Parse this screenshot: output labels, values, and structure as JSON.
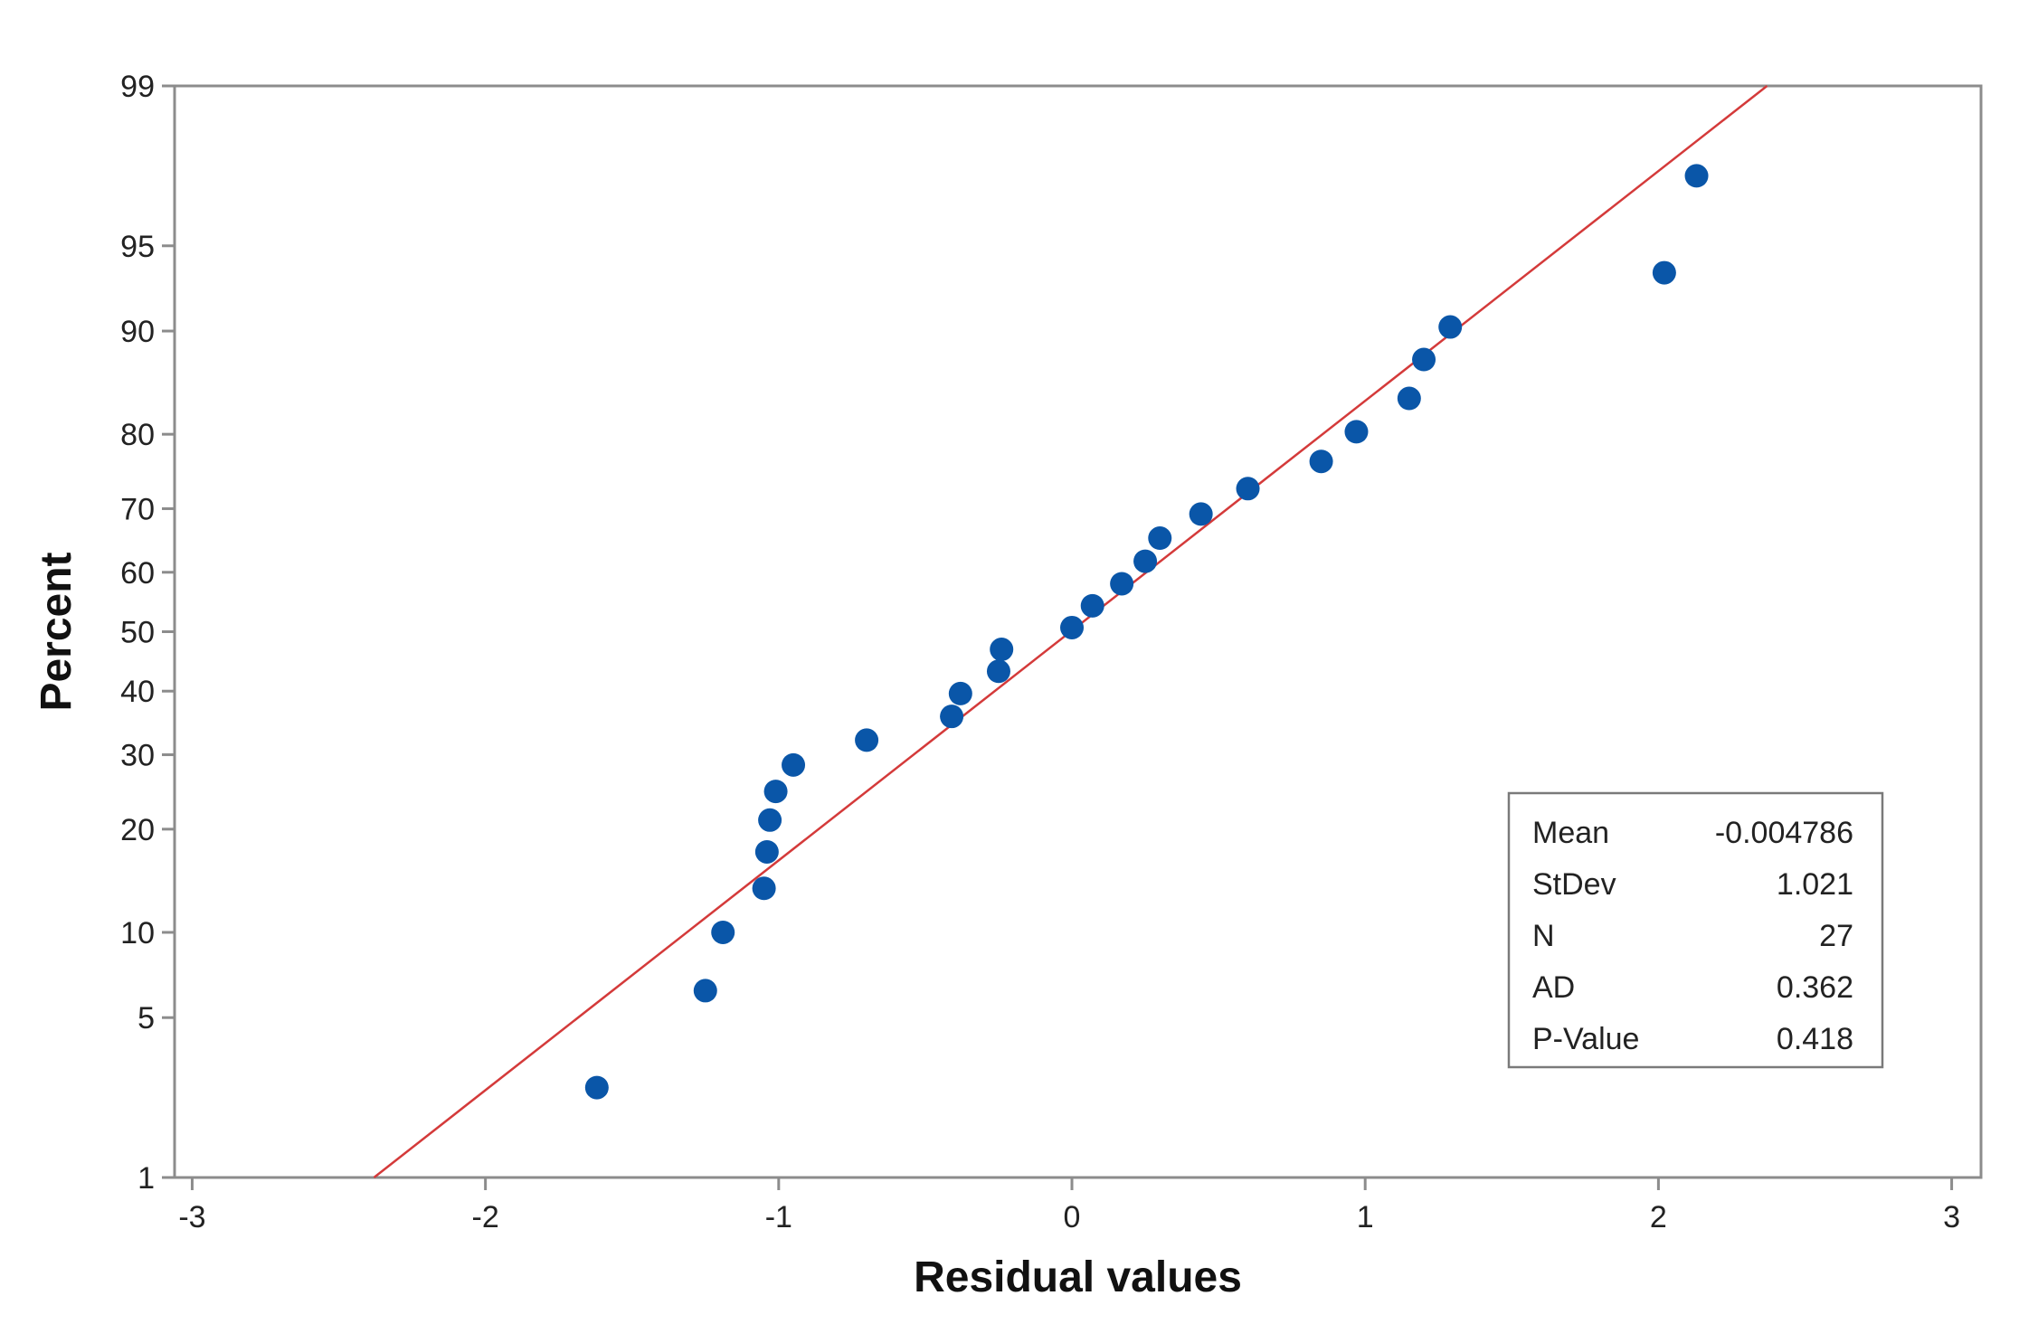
{
  "chart_data": {
    "type": "scatter",
    "subtype": "normal-probability-plot",
    "title": "",
    "xlabel": "Residual values",
    "ylabel": "Percent",
    "xlim": [
      -3,
      3
    ],
    "ylim_percent": [
      1,
      99
    ],
    "x_ticks": [
      {
        "value": -3,
        "label": "-3"
      },
      {
        "value": -2,
        "label": "-2"
      },
      {
        "value": -1,
        "label": "-1"
      },
      {
        "value": 0,
        "label": "0"
      },
      {
        "value": 1,
        "label": "1"
      },
      {
        "value": 2,
        "label": "2"
      },
      {
        "value": 3,
        "label": "3"
      }
    ],
    "y_ticks": [
      {
        "value": 1,
        "label": "1"
      },
      {
        "value": 5,
        "label": "5"
      },
      {
        "value": 10,
        "label": "10"
      },
      {
        "value": 20,
        "label": "20"
      },
      {
        "value": 30,
        "label": "30"
      },
      {
        "value": 40,
        "label": "40"
      },
      {
        "value": 50,
        "label": "50"
      },
      {
        "value": 60,
        "label": "60"
      },
      {
        "value": 70,
        "label": "70"
      },
      {
        "value": 80,
        "label": "80"
      },
      {
        "value": 90,
        "label": "90"
      },
      {
        "value": 95,
        "label": "95"
      },
      {
        "value": 99,
        "label": "99"
      }
    ],
    "points": [
      {
        "x": -1.62,
        "p": 2.6
      },
      {
        "x": -1.25,
        "p": 6.3
      },
      {
        "x": -1.19,
        "p": 10.0
      },
      {
        "x": -1.05,
        "p": 13.7
      },
      {
        "x": -1.04,
        "p": 17.4
      },
      {
        "x": -1.03,
        "p": 21.1
      },
      {
        "x": -1.01,
        "p": 24.8
      },
      {
        "x": -0.95,
        "p": 28.5
      },
      {
        "x": -0.7,
        "p": 32.2
      },
      {
        "x": -0.41,
        "p": 35.9
      },
      {
        "x": -0.38,
        "p": 39.6
      },
      {
        "x": -0.25,
        "p": 43.3
      },
      {
        "x": -0.24,
        "p": 47.0
      },
      {
        "x": 0.0,
        "p": 50.7
      },
      {
        "x": 0.07,
        "p": 54.4
      },
      {
        "x": 0.17,
        "p": 58.1
      },
      {
        "x": 0.25,
        "p": 61.8
      },
      {
        "x": 0.3,
        "p": 65.5
      },
      {
        "x": 0.44,
        "p": 69.2
      },
      {
        "x": 0.6,
        "p": 72.9
      },
      {
        "x": 0.85,
        "p": 76.6
      },
      {
        "x": 0.97,
        "p": 80.3
      },
      {
        "x": 1.15,
        "p": 84.0
      },
      {
        "x": 1.2,
        "p": 87.7
      },
      {
        "x": 1.29,
        "p": 90.3
      },
      {
        "x": 2.02,
        "p": 93.7
      },
      {
        "x": 2.13,
        "p": 97.4
      }
    ],
    "fit_line": {
      "mean": -0.004786,
      "stdev": 1.021,
      "color": "#d43a3a"
    },
    "point_color": "#0a56a8",
    "stats_box": {
      "position": "bottom-right",
      "rows": [
        {
          "label": "Mean",
          "value": "-0.004786"
        },
        {
          "label": "StDev",
          "value": "1.021"
        },
        {
          "label": "N",
          "value": "27"
        },
        {
          "label": "AD",
          "value": "0.362"
        },
        {
          "label": "P-Value",
          "value": "0.418"
        }
      ]
    }
  }
}
